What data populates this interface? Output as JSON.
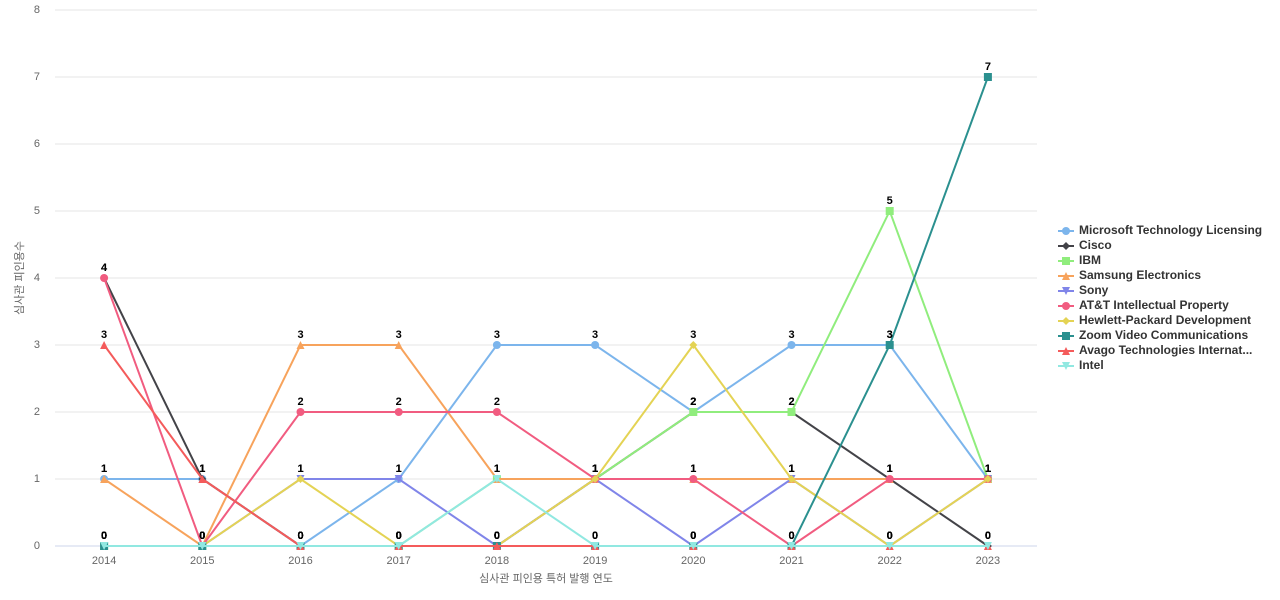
{
  "chart_data": {
    "type": "line",
    "x_label": "심사관 피인용 특허 발행 연도",
    "y_label": "심사관 피인용수",
    "categories": [
      "2014",
      "2015",
      "2016",
      "2017",
      "2018",
      "2019",
      "2020",
      "2021",
      "2022",
      "2023"
    ],
    "ylim": [
      0,
      8
    ],
    "yticks": [
      0,
      1,
      2,
      3,
      4,
      5,
      6,
      7,
      8
    ],
    "grid": true,
    "legend": "right",
    "series": [
      {
        "name": "Microsoft Technology Licensing",
        "color": "#7cb5ec",
        "marker": "circle",
        "values": [
          1,
          1,
          0,
          1,
          3,
          3,
          2,
          3,
          3,
          1
        ]
      },
      {
        "name": "Cisco",
        "color": "#434348",
        "marker": "diamond",
        "values": [
          4,
          1,
          0,
          0,
          0,
          1,
          2,
          2,
          1,
          0
        ]
      },
      {
        "name": "IBM",
        "color": "#90ed7d",
        "marker": "square",
        "values": [
          0,
          0,
          0,
          0,
          1,
          1,
          2,
          2,
          5,
          1
        ]
      },
      {
        "name": "Samsung Electronics",
        "color": "#f7a35c",
        "marker": "triangle",
        "values": [
          1,
          0,
          3,
          3,
          1,
          1,
          1,
          1,
          1,
          1
        ]
      },
      {
        "name": "Sony",
        "color": "#8085e9",
        "marker": "triangle-down",
        "values": [
          0,
          0,
          1,
          1,
          0,
          1,
          0,
          1,
          0,
          1
        ]
      },
      {
        "name": "AT&T Intellectual Property",
        "color": "#f15c80",
        "marker": "circle",
        "values": [
          4,
          0,
          2,
          2,
          2,
          1,
          1,
          0,
          1,
          1
        ]
      },
      {
        "name": "Hewlett-Packard Development",
        "color": "#e4d354",
        "marker": "diamond",
        "values": [
          0,
          0,
          1,
          0,
          0,
          1,
          3,
          1,
          0,
          1
        ]
      },
      {
        "name": "Zoom Video Communications",
        "color": "#2b908f",
        "marker": "square",
        "values": [
          0,
          0,
          0,
          0,
          0,
          0,
          0,
          0,
          3,
          7
        ]
      },
      {
        "name": "Avago Technologies Internat...",
        "color": "#f45b5b",
        "marker": "triangle",
        "values": [
          3,
          1,
          0,
          0,
          0,
          0,
          0,
          0,
          0,
          0
        ]
      },
      {
        "name": "Intel",
        "color": "#91e8e1",
        "marker": "triangle-down",
        "values": [
          0,
          0,
          0,
          0,
          1,
          0,
          0,
          0,
          0,
          0
        ]
      }
    ]
  }
}
